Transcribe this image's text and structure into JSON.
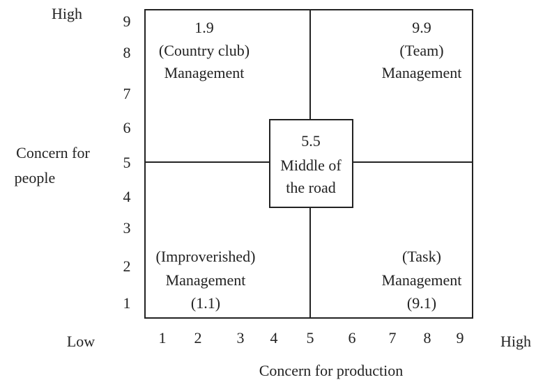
{
  "axes": {
    "y_label_top": "High",
    "y_label_bottom": "Low",
    "x_label_right": "High",
    "y_title": [
      "Concern for",
      "people"
    ],
    "x_title": "Concern for production",
    "y_ticks": [
      9,
      8,
      7,
      6,
      5,
      4,
      3,
      2,
      1
    ],
    "x_ticks": [
      1,
      2,
      3,
      4,
      5,
      6,
      7,
      8,
      9
    ]
  },
  "quadrants": {
    "top_left": [
      "1.9",
      "(Country club)",
      "Management"
    ],
    "top_right": [
      "9.9",
      "(Team)",
      "Management"
    ],
    "bottom_left": [
      "(Improverished)",
      "Management",
      "(1.1)"
    ],
    "bottom_right": [
      "(Task)",
      "Management",
      "(9.1)"
    ],
    "center": [
      "5.5",
      "Middle of",
      "the road"
    ]
  }
}
